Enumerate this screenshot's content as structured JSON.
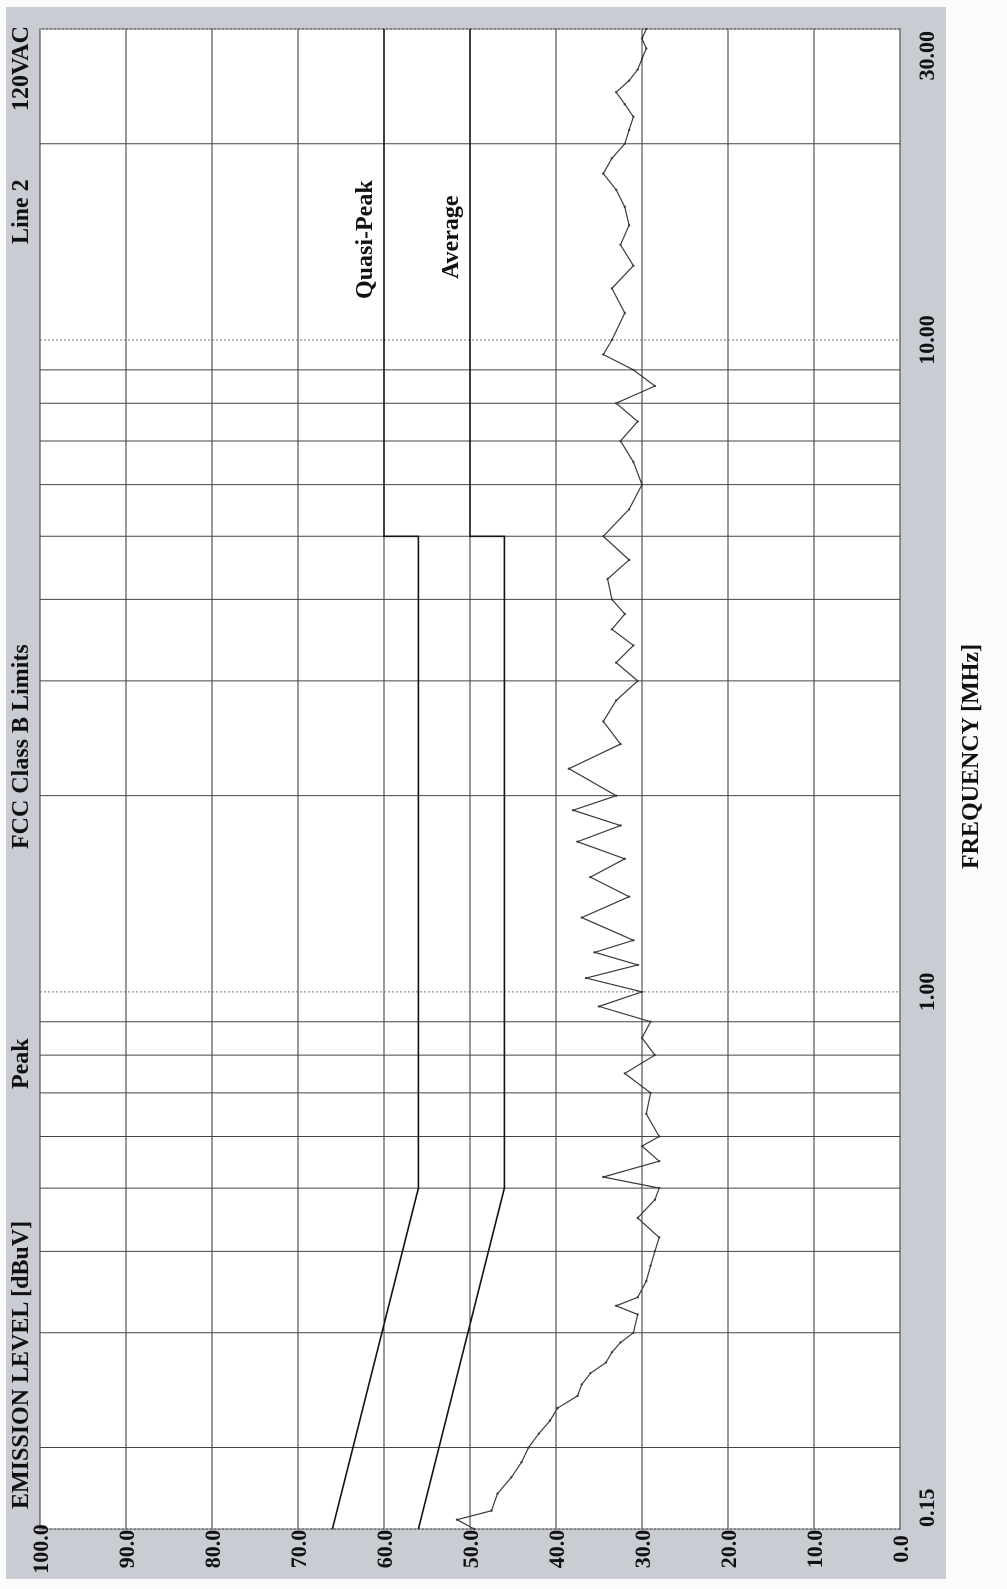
{
  "chart_data": {
    "type": "line",
    "title": "FCC Class B Limits",
    "header_left": "Peak",
    "header_line": "Line 2",
    "header_voltage": "120VAC",
    "xlabel": "FREQUENCY [MHz]",
    "ylabel": "EMISSION LEVEL [dBuV]",
    "x_scale": "log",
    "xlim": [
      0.15,
      30.0
    ],
    "ylim": [
      0,
      100
    ],
    "y_ticks": [
      "0.0",
      "10.0",
      "20.0",
      "30.0",
      "40.0",
      "50.0",
      "60.0",
      "70.0",
      "80.0",
      "90.0",
      "100.0"
    ],
    "x_tick_labels": [
      {
        "x": 0.15,
        "label": "0.15"
      },
      {
        "x": 1.0,
        "label": "1.00"
      },
      {
        "x": 10.0,
        "label": "10.00"
      },
      {
        "x": 30.0,
        "label": "30.00"
      }
    ],
    "x_minor_grid": [
      0.2,
      0.3,
      0.4,
      0.5,
      0.6,
      0.7,
      0.8,
      0.9,
      2,
      3,
      4,
      5,
      6,
      7,
      8,
      9,
      20
    ],
    "grid": true,
    "limit_lines": [
      {
        "name": "Quasi-Peak",
        "points": [
          [
            0.15,
            66.0
          ],
          [
            0.5,
            56.0
          ],
          [
            5.0,
            56.0
          ],
          [
            5.0,
            60.0
          ],
          [
            30.0,
            60.0
          ]
        ]
      },
      {
        "name": "Average",
        "points": [
          [
            0.15,
            56.0
          ],
          [
            0.5,
            46.0
          ],
          [
            5.0,
            46.0
          ],
          [
            5.0,
            50.0
          ],
          [
            30.0,
            50.0
          ]
        ]
      }
    ],
    "series": [
      {
        "name": "Peak",
        "x": [
          0.15,
          0.155,
          0.16,
          0.17,
          0.18,
          0.19,
          0.2,
          0.21,
          0.22,
          0.23,
          0.24,
          0.25,
          0.26,
          0.27,
          0.28,
          0.29,
          0.3,
          0.32,
          0.33,
          0.34,
          0.36,
          0.38,
          0.4,
          0.42,
          0.45,
          0.48,
          0.5,
          0.52,
          0.55,
          0.58,
          0.6,
          0.65,
          0.7,
          0.75,
          0.8,
          0.85,
          0.9,
          0.95,
          1.0,
          1.05,
          1.1,
          1.15,
          1.2,
          1.3,
          1.4,
          1.5,
          1.6,
          1.7,
          1.8,
          1.9,
          2.0,
          2.2,
          2.4,
          2.6,
          2.8,
          3.0,
          3.2,
          3.4,
          3.6,
          3.8,
          4.0,
          4.3,
          4.6,
          5.0,
          5.5,
          6.0,
          6.5,
          7.0,
          7.5,
          8.0,
          8.5,
          9.0,
          9.5,
          10.0,
          11.0,
          12.0,
          13.0,
          14.0,
          15.0,
          16.0,
          17.0,
          18.0,
          19.0,
          20.0,
          21.0,
          22.0,
          23.0,
          24.0,
          25.0,
          26.0,
          27.0,
          28.0,
          29.0,
          30.0
        ],
        "y": [
          49.5,
          51.5,
          47.5,
          46.8,
          45.2,
          44.0,
          43.2,
          42.0,
          40.7,
          39.8,
          37.5,
          37.0,
          36.0,
          34.2,
          33.5,
          32.5,
          31.0,
          30.5,
          33.0,
          30.5,
          29.5,
          29.0,
          28.5,
          28.0,
          30.5,
          28.5,
          28.0,
          34.5,
          28.0,
          30.0,
          28.0,
          29.5,
          29.0,
          32.0,
          28.5,
          30.0,
          29.0,
          35.0,
          30.0,
          36.5,
          30.5,
          35.5,
          31.0,
          37.0,
          31.5,
          36.0,
          32.0,
          37.5,
          32.5,
          38.0,
          33.0,
          38.5,
          32.5,
          34.5,
          33.0,
          30.5,
          33.0,
          31.0,
          33.5,
          32.0,
          33.5,
          34.0,
          31.5,
          34.5,
          31.5,
          30.0,
          31.0,
          32.5,
          30.5,
          33.0,
          28.5,
          31.0,
          34.5,
          33.5,
          32.0,
          33.5,
          31.0,
          32.5,
          31.5,
          32.0,
          33.0,
          34.5,
          33.5,
          32.0,
          31.5,
          31.0,
          32.0,
          33.0,
          31.5,
          30.5,
          30.0,
          29.5,
          30.0,
          29.5
        ]
      }
    ]
  }
}
